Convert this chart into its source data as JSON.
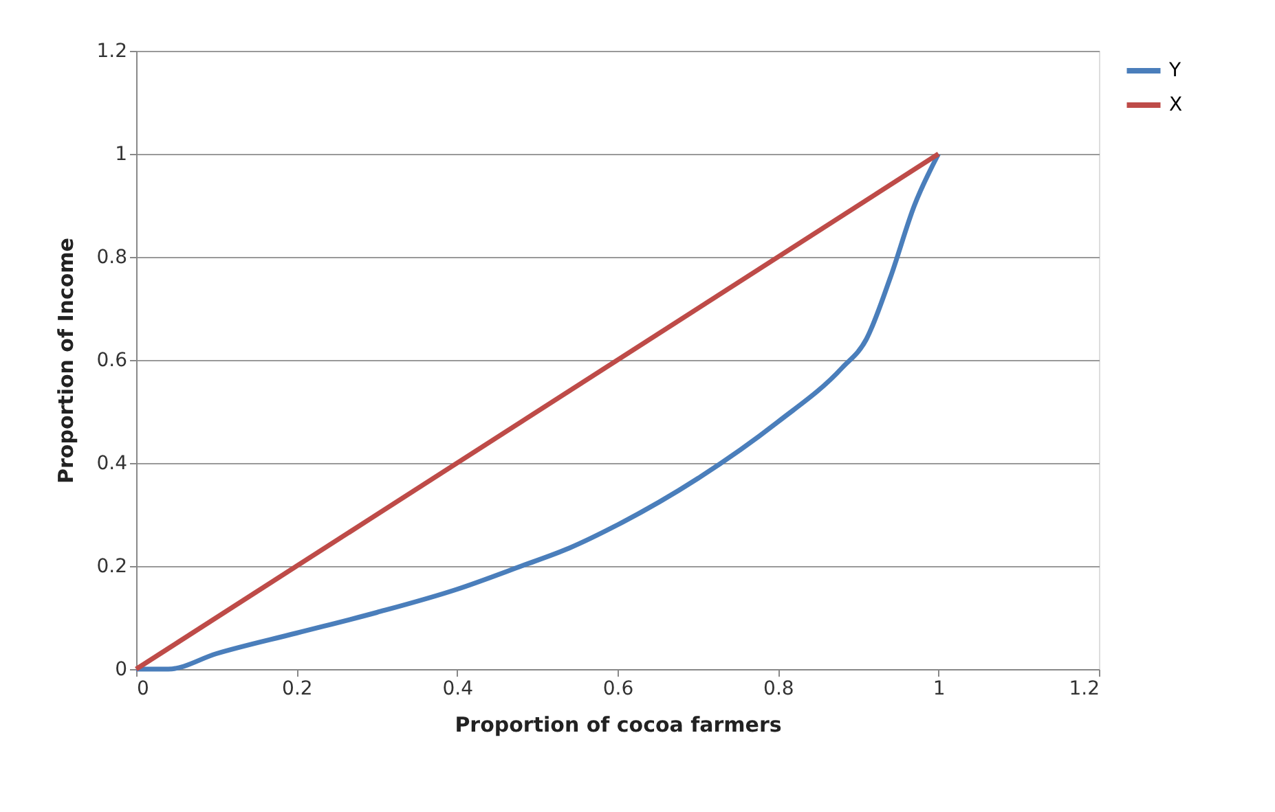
{
  "chart_data": {
    "type": "line",
    "xlabel": "Proportion of cocoa farmers",
    "ylabel": "Proportion of Income",
    "xlim": [
      0,
      1.2
    ],
    "xticks": [
      0,
      0.2,
      0.4,
      0.6,
      0.8,
      1,
      1.2
    ],
    "ylim": [
      0,
      1.2
    ],
    "yticks": [
      0,
      0.2,
      0.4,
      0.6,
      0.8,
      1,
      1.2
    ],
    "grid": "y",
    "legend": "right",
    "marker": "none",
    "line_style": "solid",
    "series": [
      {
        "name": "Y",
        "color": "#4a7ebb",
        "x": [
          0,
          0.04,
          0.1,
          0.2,
          0.3,
          0.4,
          0.48,
          0.54,
          0.6,
          0.7,
          0.8,
          0.88,
          0.91,
          0.94,
          0.97,
          1
        ],
        "values": [
          0,
          0,
          0.03,
          0.07,
          0.11,
          0.155,
          0.2,
          0.235,
          0.28,
          0.37,
          0.48,
          0.585,
          0.64,
          0.76,
          0.9,
          1
        ]
      },
      {
        "name": "X",
        "color": "#be4b48",
        "x": [
          0,
          1
        ],
        "values": [
          0,
          1
        ]
      }
    ]
  }
}
